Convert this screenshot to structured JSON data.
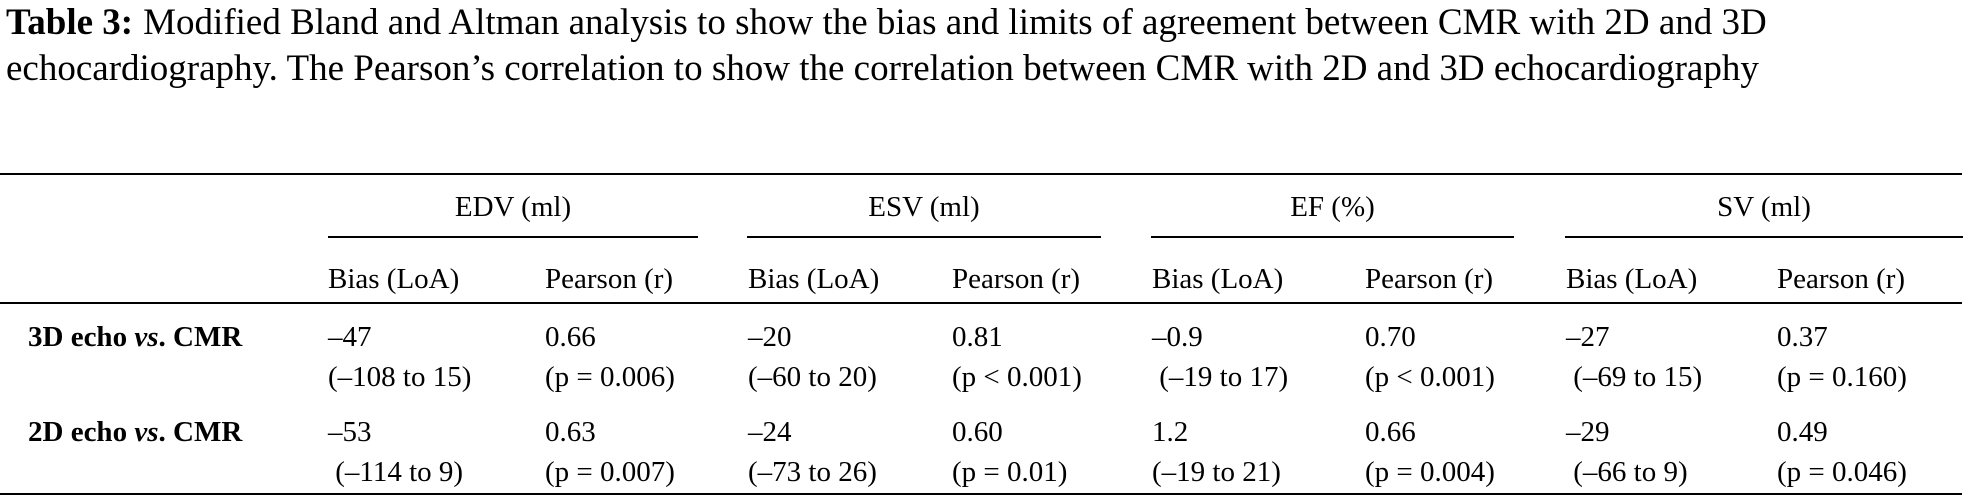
{
  "caption": {
    "label": "Table 3:",
    "text": "Modified Bland and Altman analysis to show the bias and limits of agreement between CMR with 2D and 3D echocardiography. The Pearson’s correlation to show the correlation between CMR with 2D and 3D echocardiography"
  },
  "columns": {
    "groups": [
      "EDV (ml)",
      "ESV (ml)",
      "EF (%)",
      "SV (ml)"
    ],
    "subheaders": [
      "Bias (LoA)",
      "Pearson (r)",
      "Bias (LoA)",
      "Pearson (r)",
      "Bias (LoA)",
      "Pearson (r)",
      "Bias (LoA)",
      "Pearson (r)"
    ]
  },
  "rows": [
    {
      "label_pre": "3D echo ",
      "label_italic": "vs",
      "label_post": ". CMR",
      "cells": [
        {
          "line1": "–47",
          "line2": "(–108 to 15)"
        },
        {
          "line1": "0.66",
          "line2": "(p = 0.006)"
        },
        {
          "line1": "–20",
          "line2": "(–60 to 20)"
        },
        {
          "line1": "0.81",
          "line2": "(p < 0.001)"
        },
        {
          "line1": "–0.9",
          "line2": " (–19 to 17)"
        },
        {
          "line1": "0.70",
          "line2": "(p < 0.001)"
        },
        {
          "line1": "–27",
          "line2": " (–69 to 15)"
        },
        {
          "line1": "0.37",
          "line2": "(p = 0.160)"
        }
      ]
    },
    {
      "label_pre": "2D echo ",
      "label_italic": "vs",
      "label_post": ". CMR",
      "cells": [
        {
          "line1": "–53",
          "line2": " (–114 to 9)"
        },
        {
          "line1": "0.63",
          "line2": "(p = 0.007)"
        },
        {
          "line1": "–24",
          "line2": "(–73 to 26)"
        },
        {
          "line1": "0.60",
          "line2": "(p = 0.01)"
        },
        {
          "line1": "1.2",
          "line2": "(–19 to 21)"
        },
        {
          "line1": "0.66",
          "line2": "(p = 0.004)"
        },
        {
          "line1": "–29",
          "line2": " (–66 to 9)"
        },
        {
          "line1": "0.49",
          "line2": "(p = 0.046)"
        }
      ]
    }
  ]
}
